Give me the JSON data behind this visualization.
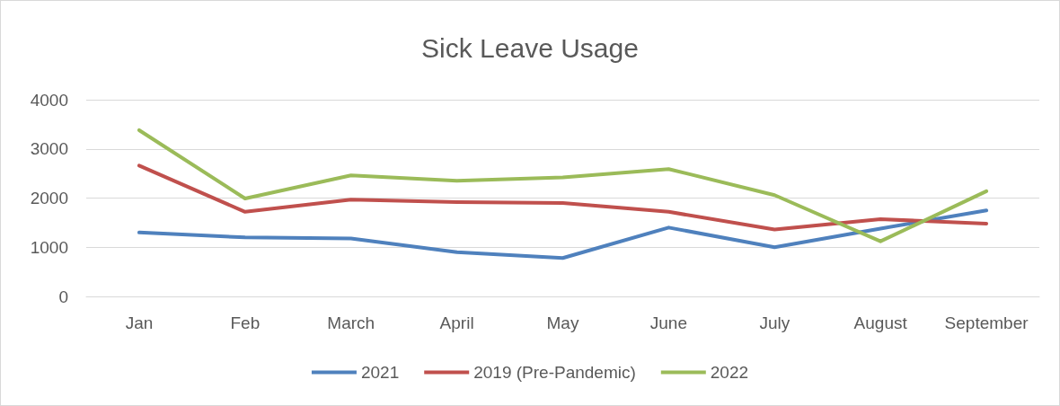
{
  "chart_data": {
    "type": "line",
    "title": "Sick Leave Usage",
    "categories": [
      "Jan",
      "Feb",
      "March",
      "April",
      "May",
      "June",
      "July",
      "August",
      "September"
    ],
    "series": [
      {
        "name": "2021",
        "color": "#4f81bd",
        "values": [
          1300,
          1200,
          1180,
          900,
          780,
          1400,
          1000,
          1380,
          1750
        ]
      },
      {
        "name": "2019 (Pre-Pandemic)",
        "color": "#c0504d",
        "values": [
          2660,
          1720,
          1970,
          1920,
          1900,
          1720,
          1360,
          1570,
          1480
        ]
      },
      {
        "name": "2022",
        "color": "#9bbb59",
        "values": [
          3380,
          1990,
          2460,
          2350,
          2420,
          2590,
          2060,
          1120,
          2140
        ]
      }
    ],
    "ylim": [
      0,
      4000
    ],
    "yticks": [
      0,
      1000,
      2000,
      3000,
      4000
    ],
    "grid": "y",
    "legend": "bottom",
    "marker": "none",
    "line_style": "solid"
  }
}
